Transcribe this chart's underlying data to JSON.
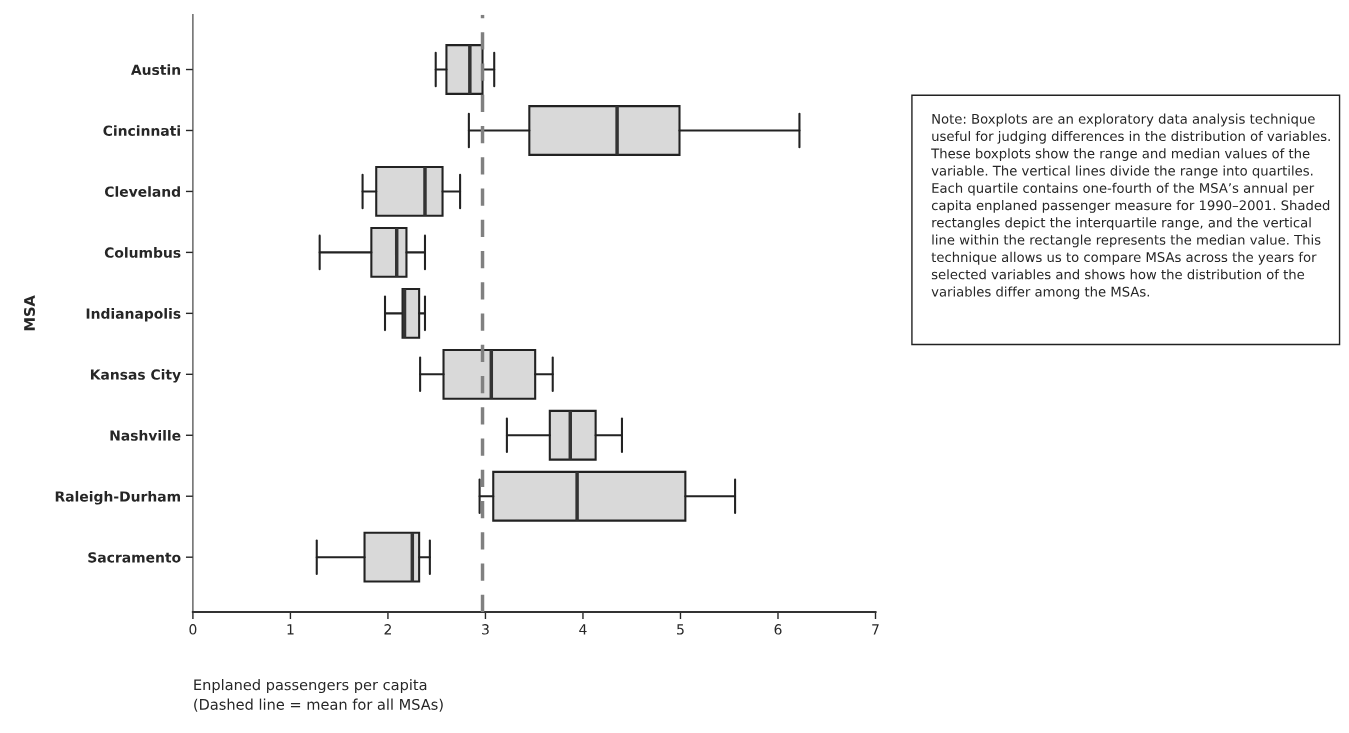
{
  "chart_data": {
    "type": "box",
    "orientation": "horizontal",
    "categories": [
      "Austin",
      "Cincinnati",
      "Cleveland",
      "Columbus",
      "Indianapolis",
      "Kansas City",
      "Nashville",
      "Raleigh-Durham",
      "Sacramento"
    ],
    "boxes": [
      {
        "low": 2.49,
        "q1": 2.6,
        "median": 2.84,
        "q3": 2.97,
        "high": 3.09
      },
      {
        "low": 2.83,
        "q1": 3.45,
        "median": 4.35,
        "q3": 4.99,
        "high": 6.22
      },
      {
        "low": 1.74,
        "q1": 1.88,
        "median": 2.38,
        "q3": 2.56,
        "high": 2.74
      },
      {
        "low": 1.3,
        "q1": 1.83,
        "median": 2.09,
        "q3": 2.19,
        "high": 2.38
      },
      {
        "low": 1.97,
        "q1": 2.15,
        "median": 2.17,
        "q3": 2.32,
        "high": 2.38
      },
      {
        "low": 2.33,
        "q1": 2.57,
        "median": 3.06,
        "q3": 3.51,
        "high": 3.69
      },
      {
        "low": 3.22,
        "q1": 3.66,
        "median": 3.87,
        "q3": 4.13,
        "high": 4.4
      },
      {
        "low": 2.94,
        "q1": 3.08,
        "median": 3.94,
        "q3": 5.05,
        "high": 5.56
      },
      {
        "low": 1.27,
        "q1": 1.76,
        "median": 2.25,
        "q3": 2.32,
        "high": 2.43
      }
    ],
    "color": "#d9d9d9",
    "xlabel": "Enplaned passengers per capita\n(Dashed line = mean for all MSAs)",
    "ylabel": "MSA",
    "xlim": [
      0,
      7
    ],
    "xticks": [
      0,
      1,
      2,
      3,
      4,
      5,
      6,
      7
    ],
    "ref_lines": [
      {
        "axis": "x",
        "value": 2.97,
        "color": "#808080",
        "line_style": "dashed"
      }
    ],
    "annotations": [
      "Note: Boxplots are an exploratory data analysis technique useful for judging differences in the distribution of variables. These boxplots show the range and median values of the variable. The vertical lines divide the range into quartiles. Each quartile contains one-fourth of the MSA’s annual per capita enplaned passenger measure for 1990–2001. Shaded rectangles depict the interquartile range, and the vertical line within the rectangle represents the median value. This technique allows us to compare MSAs across the years for selected variables and shows how the distribution of the variables differ among the MSAs."
    ],
    "grid": false,
    "legend": false
  }
}
